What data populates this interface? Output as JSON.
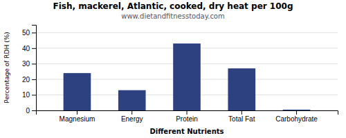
{
  "chart_data": {
    "type": "bar",
    "title": "Fish, mackerel, Atlantic, cooked, dry heat per 100g",
    "subtitle": "www.dietandfitnesstoday.com",
    "categories": [
      "Magnesium",
      "Energy",
      "Protein",
      "Total Fat",
      "Carbohydrate"
    ],
    "values": [
      24,
      13,
      43,
      27,
      0.5
    ],
    "color": "#2d4080",
    "ylabel": "Percentage of RDH (%)",
    "xlabel": "Different Nutrients",
    "ylim": [
      0,
      55
    ],
    "yticks": [
      0,
      10,
      20,
      30,
      40,
      50
    ],
    "grid": true
  }
}
